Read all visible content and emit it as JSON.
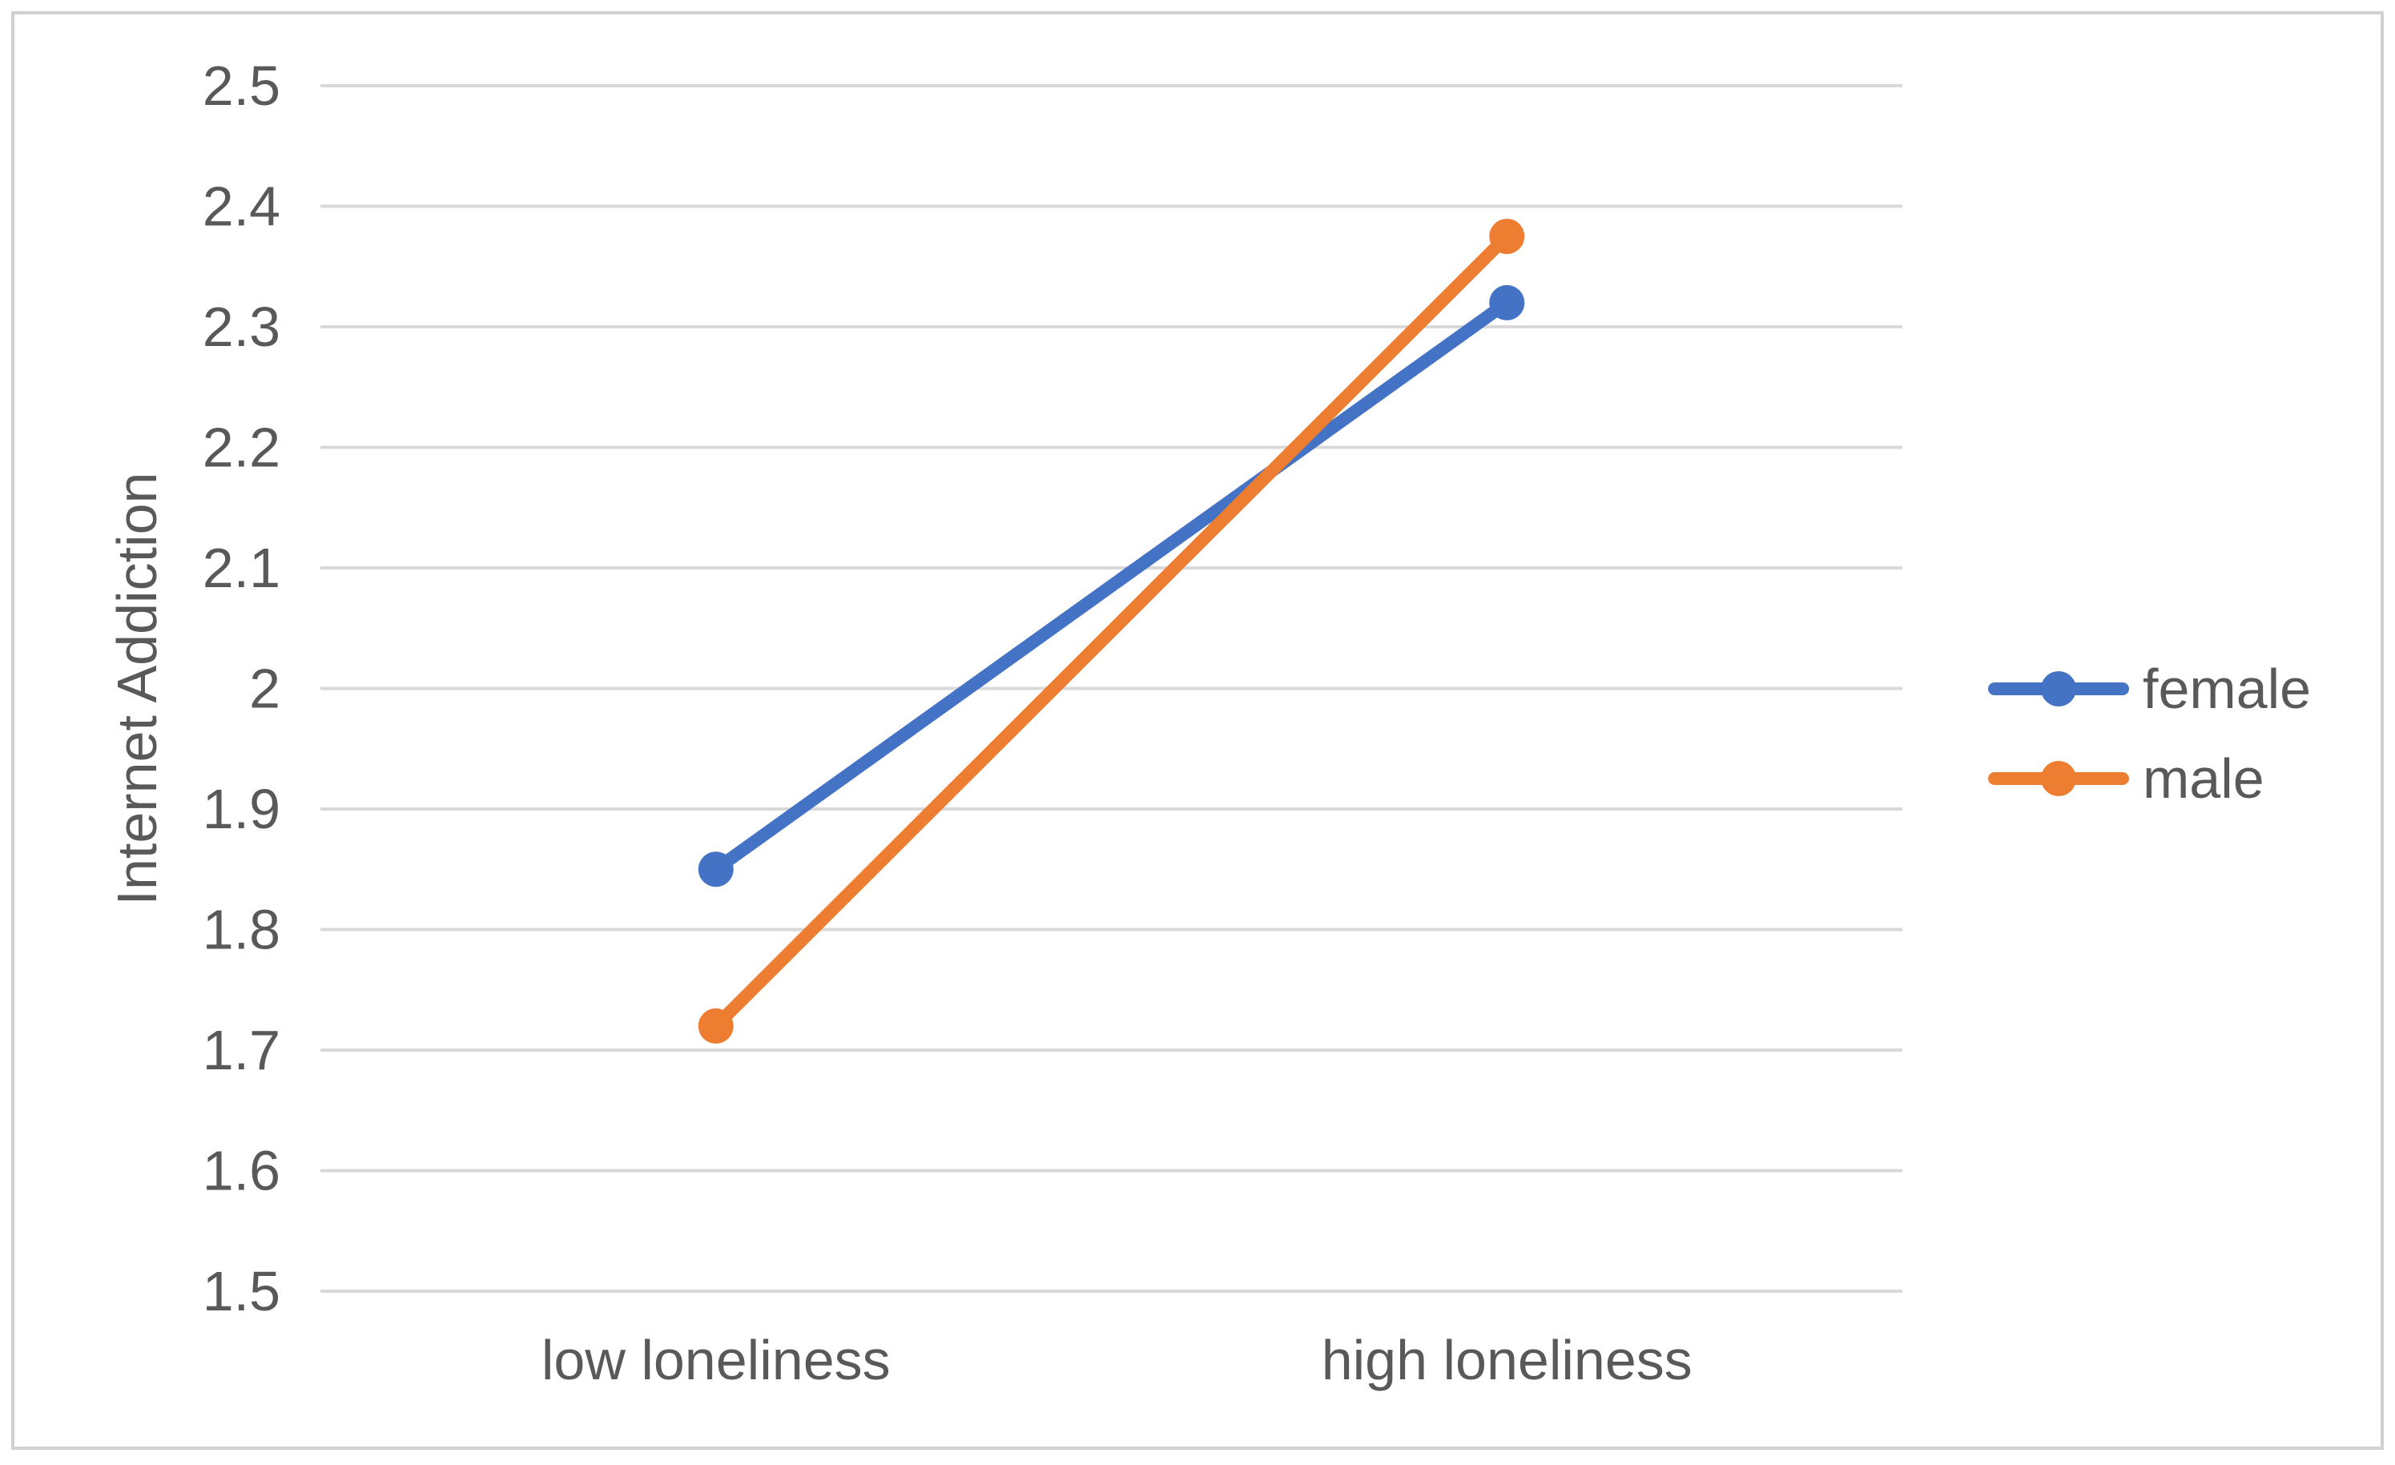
{
  "chart_data": {
    "type": "line",
    "categories": [
      "low loneliness",
      "high loneliness"
    ],
    "series": [
      {
        "name": "female",
        "values": [
          1.85,
          2.32
        ],
        "color": "#4472c4"
      },
      {
        "name": "male",
        "values": [
          1.72,
          2.375
        ],
        "color": "#ed7d31"
      }
    ],
    "ylabel": "Internet Addiction",
    "ylim": [
      1.5,
      2.5
    ],
    "yticks": [
      1.5,
      1.6,
      1.7,
      1.8,
      1.9,
      2.0,
      2.1,
      2.2,
      2.3,
      2.4,
      2.5
    ],
    "ytick_labels": [
      "1.5",
      "1.6",
      "1.7",
      "1.8",
      "1.9",
      "2",
      "2.1",
      "2.2",
      "2.3",
      "2.4",
      "2.5"
    ],
    "grid": true,
    "legend_position": "right",
    "colors": {
      "gridline": "#d9d9d9",
      "border": "#d0d0d0",
      "text": "#595959"
    }
  }
}
